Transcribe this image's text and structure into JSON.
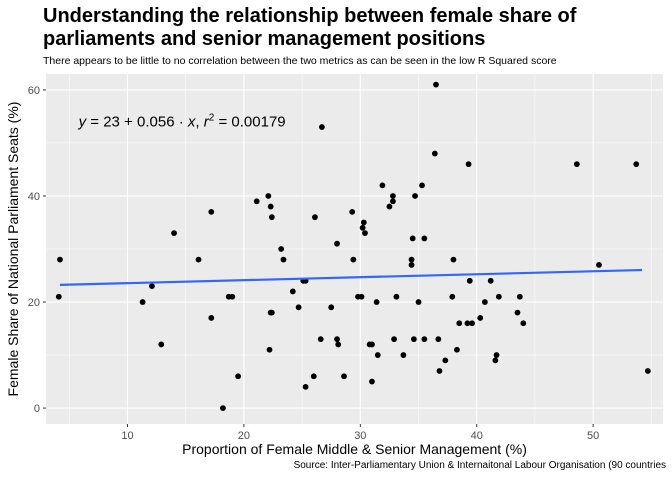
{
  "chart_data": {
    "type": "scatter",
    "title": "Understanding the relationship between female share of parliaments and senior management positions",
    "title_lines": [
      "Understanding the relationship between female share of",
      "parliaments and senior management positions"
    ],
    "subtitle": "There appears to be little to no correlation between the two metrics as can be seen in the low R Squared score",
    "caption": "Source: Inter-Parliamentary Union & Internaitonal Labour Organisation (90 countries",
    "xlabel": "Proportion of Female Middle & Senior Management (%)",
    "ylabel": "Female Share of National Parliament Seats (%)",
    "xlim": [
      3,
      56
    ],
    "ylim": [
      -3,
      63
    ],
    "xticks": [
      10,
      20,
      30,
      40,
      50
    ],
    "yticks": [
      0,
      20,
      40,
      60
    ],
    "grid": true,
    "regression": {
      "intercept": 23,
      "slope": 0.056,
      "x_range": [
        4.2,
        54.2
      ],
      "color": "#3366ff"
    },
    "equation": {
      "y_label": "y",
      "intercept_text": "23",
      "slope_text": "0.056",
      "x_label": "x",
      "r2_label": "r",
      "r2_value": "0.00179"
    },
    "point_color": "#000000",
    "x": [
      36.5,
      26.7,
      39.3,
      36.4,
      48.6,
      53.7,
      22.1,
      21.1,
      35.3,
      34.7,
      14.0,
      17.2,
      22.4,
      22.3,
      30.2,
      31.9,
      32.8,
      32.5,
      32.8,
      29.3,
      30.3,
      30.4,
      34.5,
      35.5,
      41.2,
      28.0,
      23.2,
      23.4,
      16.1,
      34.4,
      34.4,
      29.4,
      38.0,
      39.4,
      50.5,
      4.2,
      24.2,
      27.5,
      31.4,
      11.3,
      12.1,
      24.7,
      25.3,
      30.1,
      35.0,
      33.1,
      37.9,
      39.6,
      40.3,
      40.7,
      41.9,
      43.5,
      43.7,
      44.0,
      38.5,
      39.2,
      28.1,
      29.8,
      22.3,
      17.2,
      4.1,
      12.9,
      28.0,
      31.0,
      32.9,
      41.7,
      26.6,
      35.5,
      31.5,
      33.7,
      36.8,
      37.3,
      38.3,
      34.6,
      26.1,
      26.0,
      28.6,
      19.5,
      25.3,
      31.0,
      30.8,
      18.7,
      25.1,
      36.7,
      18.2,
      54.7,
      41.6,
      19.0,
      22.2,
      22.4
    ],
    "y": [
      61,
      53,
      46,
      48,
      46,
      46,
      40,
      39,
      42,
      40,
      33,
      37,
      36,
      38,
      34,
      42,
      40,
      38,
      39,
      37,
      35,
      33,
      32,
      32,
      24,
      31,
      30,
      28,
      28,
      27,
      28,
      28,
      28,
      24,
      27,
      28,
      22,
      19,
      20,
      20,
      23,
      19,
      24,
      21,
      20,
      21,
      21,
      16,
      17,
      20,
      21,
      18,
      21,
      16,
      16,
      16,
      12,
      21,
      18,
      17,
      21,
      12,
      13,
      12,
      13,
      10,
      13,
      13,
      10,
      10,
      7,
      9,
      11,
      13,
      36,
      6,
      6,
      6,
      4,
      5,
      12,
      21,
      24,
      13,
      0,
      7,
      9,
      21,
      11,
      18
    ]
  }
}
